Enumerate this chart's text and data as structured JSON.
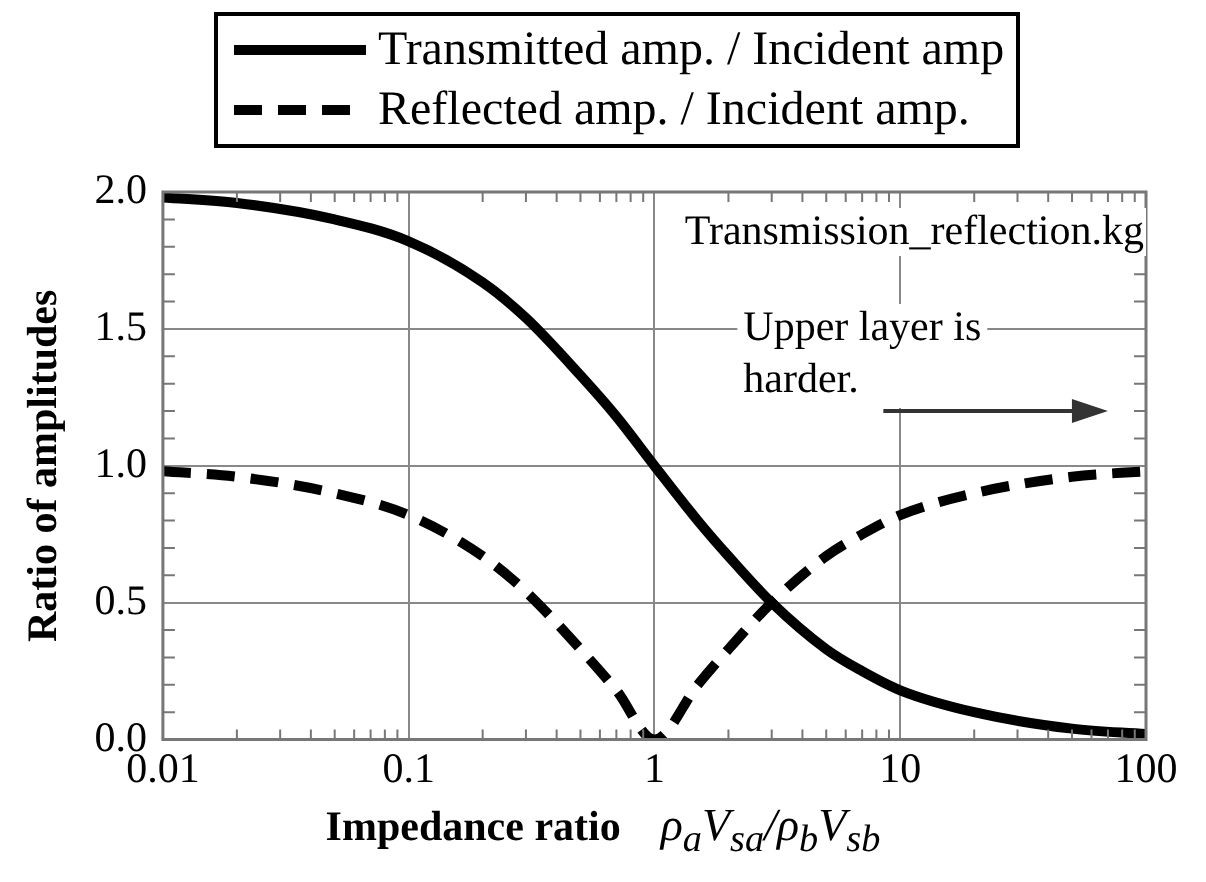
{
  "chart_data": {
    "type": "line",
    "xlabel": "Impedance ratio   ρ$_{a}$V$_{sa}$/ρ$_{b}$V$_{sb}$",
    "ylabel": "Ratio of amplitudes",
    "x": [
      0.01,
      0.02,
      0.05,
      0.1,
      0.2,
      0.3,
      0.5,
      0.7,
      1,
      1.5,
      2,
      3,
      5,
      7,
      10,
      20,
      50,
      100
    ],
    "series": [
      {
        "name": "Transmitted amp. / Incident amp",
        "color": "#000000",
        "line_style": "solid",
        "values": [
          1.98,
          1.96,
          1.9,
          1.82,
          1.67,
          1.54,
          1.33,
          1.18,
          1.0,
          0.8,
          0.67,
          0.5,
          0.33,
          0.25,
          0.18,
          0.1,
          0.04,
          0.02
        ]
      },
      {
        "name": "Reflected amp. / Incident amp.",
        "color": "#000000",
        "line_style": "dashed",
        "values": [
          0.98,
          0.96,
          0.9,
          0.82,
          0.67,
          0.54,
          0.33,
          0.18,
          0.0,
          0.2,
          0.33,
          0.5,
          0.67,
          0.75,
          0.82,
          0.9,
          0.96,
          0.98
        ]
      }
    ],
    "log": "x",
    "xlim": [
      0.01,
      100
    ],
    "xticks": [
      0.01,
      0.1,
      1,
      10,
      100
    ],
    "ylim": [
      0,
      2
    ],
    "yticks": [
      {
        "value": 0,
        "label": "0.0"
      },
      0.5,
      {
        "value": 1,
        "label": "1.0"
      },
      1.5,
      {
        "value": 2,
        "label": "2.0"
      }
    ],
    "grid": true,
    "legend": "top",
    "marker": "none",
    "annotations": [
      "Transmission_reflection.kg",
      "Upper layer is harder."
    ]
  }
}
